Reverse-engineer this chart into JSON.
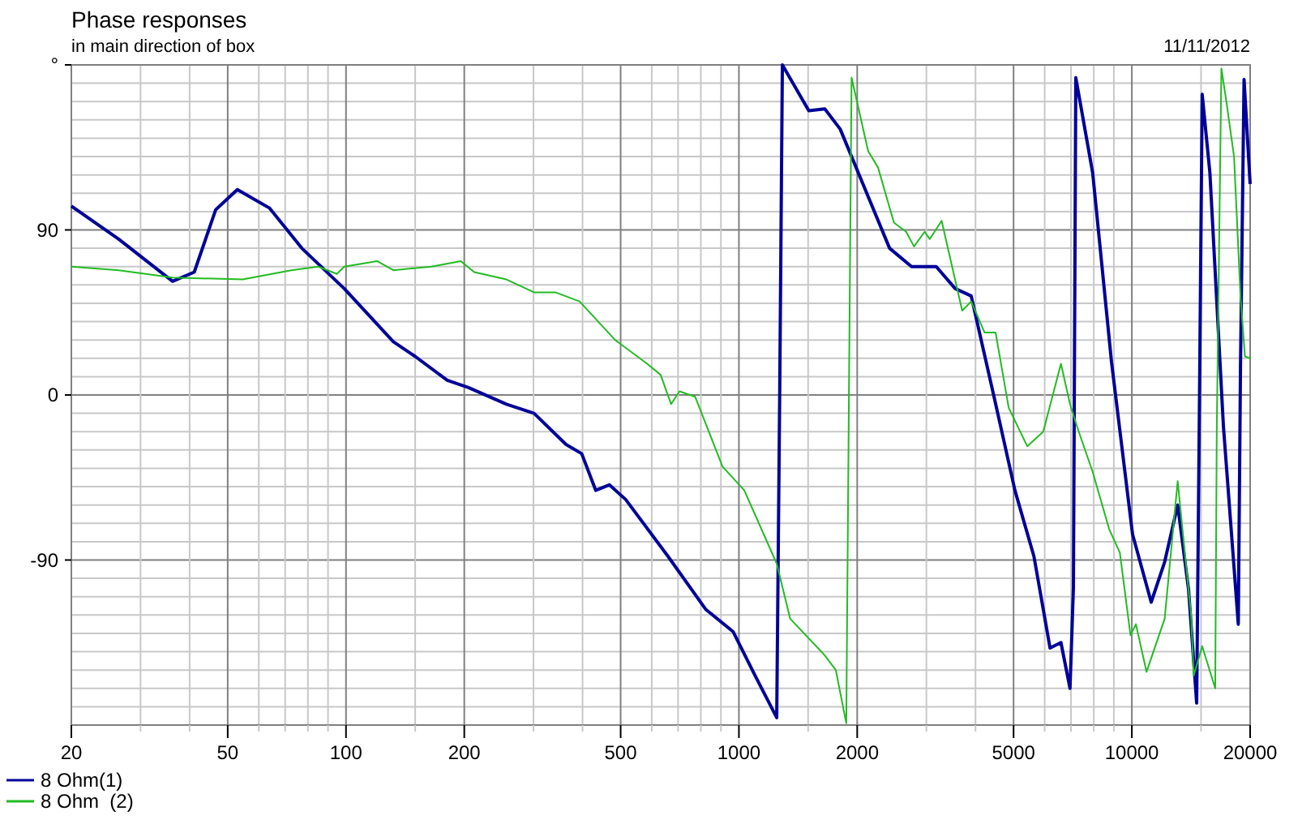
{
  "chart_data": {
    "type": "line",
    "title": "Phase responses",
    "subtitle": "in main direction of box",
    "annotations": [
      "11/11/2012"
    ],
    "log": "x",
    "grid": true,
    "legend": "bottom left",
    "line_style": "solid",
    "marker": "none",
    "xlim": [
      20,
      20000
    ],
    "ylim": [
      -180,
      180
    ],
    "xticks": [
      20,
      {
        "value": 30,
        "label": null
      },
      {
        "value": 40,
        "label": null
      },
      50,
      {
        "value": 60,
        "label": null
      },
      {
        "value": 70,
        "label": null
      },
      {
        "value": 80,
        "label": null
      },
      {
        "value": 90,
        "label": null
      },
      100,
      {
        "value": 150,
        "label": null
      },
      200,
      {
        "value": 300,
        "label": null
      },
      {
        "value": 400,
        "label": null
      },
      500,
      {
        "value": 600,
        "label": null
      },
      {
        "value": 700,
        "label": null
      },
      {
        "value": 800,
        "label": null
      },
      {
        "value": 900,
        "label": null
      },
      1000,
      {
        "value": 1500,
        "label": null
      },
      2000,
      {
        "value": 3000,
        "label": null
      },
      {
        "value": 4000,
        "label": null
      },
      5000,
      {
        "value": 6000,
        "label": null
      },
      {
        "value": 7000,
        "label": null
      },
      {
        "value": 8000,
        "label": null
      },
      {
        "value": 9000,
        "label": null
      },
      10000,
      {
        "value": 15000,
        "label": null
      },
      20000
    ],
    "yticks": [
      {
        "value": -180,
        "label": null
      },
      {
        "value": -170,
        "label": null
      },
      {
        "value": -160,
        "label": null
      },
      {
        "value": -150,
        "label": null
      },
      {
        "value": -140,
        "label": null
      },
      {
        "value": -130,
        "label": null
      },
      {
        "value": -120,
        "label": null
      },
      {
        "value": -110,
        "label": null
      },
      {
        "value": -100,
        "label": null
      },
      -90,
      {
        "value": -80,
        "label": null
      },
      {
        "value": -70,
        "label": null
      },
      {
        "value": -60,
        "label": null
      },
      {
        "value": -50,
        "label": null
      },
      {
        "value": -40,
        "label": null
      },
      {
        "value": -30,
        "label": null
      },
      {
        "value": -20,
        "label": null
      },
      {
        "value": -10,
        "label": null
      },
      0,
      {
        "value": 10,
        "label": null
      },
      {
        "value": 20,
        "label": null
      },
      {
        "value": 30,
        "label": null
      },
      {
        "value": 40,
        "label": null
      },
      {
        "value": 50,
        "label": null
      },
      {
        "value": 60,
        "label": null
      },
      {
        "value": 70,
        "label": null
      },
      {
        "value": 80,
        "label": null
      },
      90,
      {
        "value": 100,
        "label": null
      },
      {
        "value": 110,
        "label": null
      },
      {
        "value": 120,
        "label": null
      },
      {
        "value": 130,
        "label": null
      },
      {
        "value": 140,
        "label": null
      },
      {
        "value": 150,
        "label": null
      },
      {
        "value": 160,
        "label": null
      },
      {
        "value": 170,
        "label": null
      },
      {
        "value": 180,
        "label": "°"
      }
    ],
    "series": [
      {
        "name": "8 Ohm(1)",
        "color": "#000099",
        "x": [
          20,
          26.4,
          36.2,
          41.1,
          46.6,
          52.9,
          63.8,
          77.2,
          99,
          132,
          150,
          181,
          205,
          256,
          301,
          363,
          398,
          432,
          468,
          515,
          660,
          824,
          966,
          1099,
          1248,
          1270,
          1290,
          1506,
          1654,
          1810,
          2418,
          2750,
          3178,
          3552,
          3900,
          4438,
          5040,
          5634,
          6192,
          6600,
          6960,
          7100,
          7200,
          7950,
          8876,
          10040,
          11200,
          12120,
          13080,
          13940,
          14620,
          14860,
          15100,
          15800,
          17100,
          18660,
          18900,
          19300,
          20000
        ],
        "values": [
          103,
          85,
          62,
          67,
          101,
          112,
          102,
          80,
          58,
          29,
          21,
          8,
          4,
          -5,
          -10,
          -27,
          -32,
          -52,
          -49,
          -57,
          -88,
          -117,
          -129,
          -153,
          -176,
          1,
          180,
          155,
          156,
          145,
          80,
          70,
          70,
          58,
          54,
          1,
          -52,
          -88,
          -138,
          -135,
          -160,
          -105,
          173,
          121,
          18,
          -76,
          -113,
          -91,
          -60,
          -106,
          -168,
          -5,
          164,
          121,
          -17,
          -125,
          15,
          172,
          115
        ]
      },
      {
        "name": "8 Ohm  (2)",
        "color": "#22bb22",
        "x": [
          20,
          26.4,
          36.2,
          54.6,
          72.6,
          85,
          94.8,
          99,
          120,
          132,
          165,
          196,
          212,
          256,
          301,
          341,
          393,
          484,
          584,
          632,
          672,
          706,
          774,
          908,
          1032,
          1248,
          1350,
          1654,
          1764,
          1876,
          1905,
          1935,
          2132,
          2260,
          2480,
          2664,
          2790,
          2970,
          3060,
          3280,
          3700,
          3900,
          4220,
          4500,
          4860,
          5420,
          5950,
          6600,
          6960,
          7300,
          7950,
          8750,
          9320,
          9920,
          10240,
          10900,
          12120,
          13080,
          14150,
          14370,
          15100,
          16300,
          16450,
          16900,
          17400,
          18200,
          18900,
          19400,
          20000
        ],
        "values": [
          70,
          68,
          64,
          63,
          68,
          70,
          66,
          70,
          73,
          68,
          70,
          73,
          67,
          63,
          56,
          56,
          51,
          30,
          17,
          11,
          -5,
          2,
          -1,
          -39,
          -52,
          -92,
          -122,
          -142,
          -150,
          -179,
          -2,
          173,
          133,
          124,
          94,
          89,
          81,
          89,
          85,
          95,
          46,
          51,
          34,
          34,
          -7,
          -28,
          -20,
          17,
          -5,
          -19,
          -42,
          -73,
          -86,
          -131,
          -125,
          -151,
          -122,
          -47,
          -120,
          -153,
          -137,
          -160,
          -17,
          178,
          160,
          130,
          54,
          21,
          20
        ]
      }
    ]
  }
}
